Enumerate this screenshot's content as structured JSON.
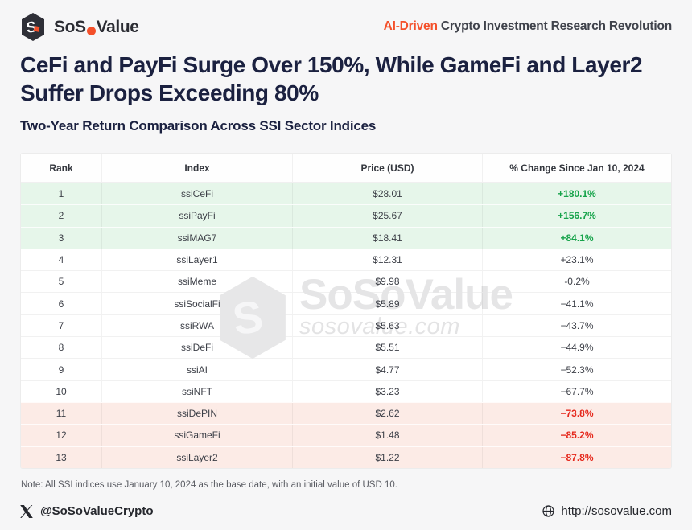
{
  "brand": {
    "wordmark_pre": "SoS",
    "wordmark_o": "o",
    "wordmark_post": "Value",
    "tagline_highlight": "AI-Driven",
    "tagline_rest": " Crypto Investment Research Revolution"
  },
  "title": {
    "line1": "CeFi and PayFi Surge Over 150%, While GameFi and Layer2",
    "line2": "Suffer Drops Exceeding 80%"
  },
  "subtitle": "Two-Year Return Comparison Across SSI Sector Indices",
  "chart_data": {
    "type": "table",
    "title": "Two-Year Return Comparison Across SSI Sector Indices",
    "columns": [
      "Rank",
      "Index",
      "Price (USD)",
      "% Change Since Jan 10, 2024"
    ],
    "rows": [
      {
        "rank": "1",
        "index": "ssiCeFi",
        "price": "$28.01",
        "change": "+180.1%",
        "tone": "up"
      },
      {
        "rank": "2",
        "index": "ssiPayFi",
        "price": "$25.67",
        "change": "+156.7%",
        "tone": "up"
      },
      {
        "rank": "3",
        "index": "ssiMAG7",
        "price": "$18.41",
        "change": "+84.1%",
        "tone": "up"
      },
      {
        "rank": "4",
        "index": "ssiLayer1",
        "price": "$12.31",
        "change": "+23.1%",
        "tone": "flat"
      },
      {
        "rank": "5",
        "index": "ssiMeme",
        "price": "$9.98",
        "change": "-0.2%",
        "tone": "flat"
      },
      {
        "rank": "6",
        "index": "ssiSocialFi",
        "price": "$5.89",
        "change": "−41.1%",
        "tone": "flat"
      },
      {
        "rank": "7",
        "index": "ssiRWA",
        "price": "$5.63",
        "change": "−43.7%",
        "tone": "flat"
      },
      {
        "rank": "8",
        "index": "ssiDeFi",
        "price": "$5.51",
        "change": "−44.9%",
        "tone": "flat"
      },
      {
        "rank": "9",
        "index": "ssiAI",
        "price": "$4.77",
        "change": "−52.3%",
        "tone": "flat"
      },
      {
        "rank": "10",
        "index": "ssiNFT",
        "price": "$3.23",
        "change": "−67.7%",
        "tone": "flat"
      },
      {
        "rank": "11",
        "index": "ssiDePIN",
        "price": "$2.62",
        "change": "−73.8%",
        "tone": "down"
      },
      {
        "rank": "12",
        "index": "ssiGameFi",
        "price": "$1.48",
        "change": "−85.2%",
        "tone": "down"
      },
      {
        "rank": "13",
        "index": "ssiLayer2",
        "price": "$1.22",
        "change": "−87.8%",
        "tone": "down"
      }
    ]
  },
  "watermark": {
    "brand": "SoSoValue",
    "domain": "sosovalue.com"
  },
  "note": "Note: All SSI indices use January 10, 2024 as the base date, with an initial value of USD 10.",
  "footer": {
    "handle": "@SoSoValueCrypto",
    "website": "http://sosovalue.com"
  },
  "colors": {
    "accent_orange": "#F4502A",
    "positive_green": "#16A34A",
    "negative_red": "#E5281C",
    "navy_title": "#1B2140",
    "positive_row_bg": "#E6F6EA",
    "negative_row_bg": "#FCEBE6"
  }
}
